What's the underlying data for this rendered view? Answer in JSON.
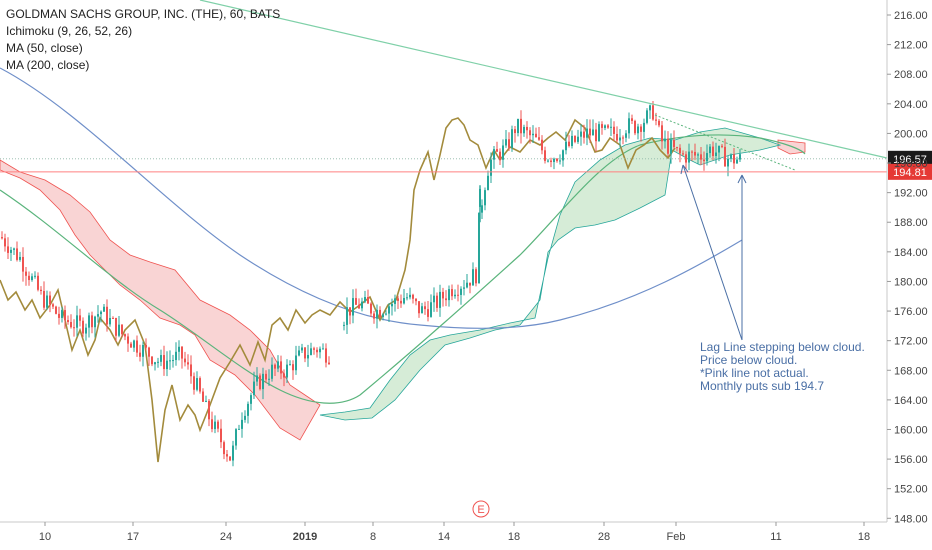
{
  "legend": {
    "title": "GOLDMAN SACHS GROUP, INC. (THE), 60, BATS",
    "ind1": "Ichimoku (9, 26, 52, 26)",
    "ind2": "MA (50, close)",
    "ind3": "MA (200, close)"
  },
  "note_lines": [
    "Lag Line stepping below cloud.",
    "Price below cloud.",
    "*Pink line not actual.",
    "Monthly puts sub 194.7"
  ],
  "event_marker": "E",
  "colors": {
    "up": "#26a69a",
    "down": "#ef5350",
    "lagging_span": "#a38b3c",
    "ma50": "#5ab47c",
    "ma200": "#6f8fc9",
    "cloud_bull": "#c8e6c9",
    "cloud_bear": "#f8c9c9",
    "trendline": "#7fd0a8",
    "support_line": "#ff8080",
    "price_tag_current": "#1a1a1a",
    "price_tag_support": "#e53935",
    "annotation": "#4a6fa5"
  },
  "chart_data": {
    "type": "line",
    "symbol": "GOLDMAN SACHS GROUP, INC. (THE)",
    "interval": "60",
    "exchange": "BATS",
    "ylim": [
      147,
      217
    ],
    "x_tick_labels": [
      "10",
      "17",
      "24",
      "2019",
      "8",
      "14",
      "18",
      "28",
      "Feb",
      "11",
      "18"
    ],
    "y_tick_labels": [
      "216.00",
      "212.00",
      "208.00",
      "204.00",
      "200.00",
      "196.00",
      "192.00",
      "188.00",
      "184.00",
      "180.00",
      "176.00",
      "172.00",
      "168.00",
      "164.00",
      "160.00",
      "156.00",
      "152.00",
      "148.00"
    ],
    "y_ticks": [
      216,
      212,
      208,
      204,
      200,
      196,
      192,
      188,
      184,
      180,
      176,
      172,
      168,
      164,
      160,
      156,
      152,
      148
    ],
    "last_price": "196.57",
    "support_level": "194.81",
    "series": [
      {
        "name": "Price",
        "values": [
          186,
          184,
          182,
          183,
          181,
          179,
          178,
          176,
          177,
          175,
          174,
          172,
          170,
          171,
          169,
          167,
          165,
          162,
          158,
          154,
          156,
          160,
          163,
          165,
          166,
          167,
          166,
          168,
          170,
          171,
          170,
          176,
          177,
          178,
          176,
          177,
          176,
          175,
          177,
          178,
          179,
          180,
          187,
          194,
          197,
          199,
          201,
          200,
          198,
          197,
          196,
          197,
          199,
          200,
          201,
          199,
          200,
          201,
          202,
          203,
          202,
          198,
          197,
          196,
          198,
          197,
          197,
          196
        ]
      },
      {
        "name": "MA (50, close)",
        "values": [
          193,
          190,
          187,
          184,
          181,
          178,
          176,
          174,
          172,
          170,
          168,
          166,
          165,
          164,
          164,
          165,
          167,
          170,
          173,
          176,
          179,
          182,
          186,
          189,
          192,
          195,
          197,
          198,
          199,
          198,
          197
        ]
      },
      {
        "name": "MA (200, close)",
        "values": [
          206,
          204,
          201,
          198,
          195,
          192,
          189,
          186,
          183,
          180,
          178,
          176,
          175,
          174.5,
          174,
          174.5,
          175,
          176,
          177,
          178,
          179,
          180,
          181,
          182.5,
          184,
          186
        ]
      }
    ]
  }
}
